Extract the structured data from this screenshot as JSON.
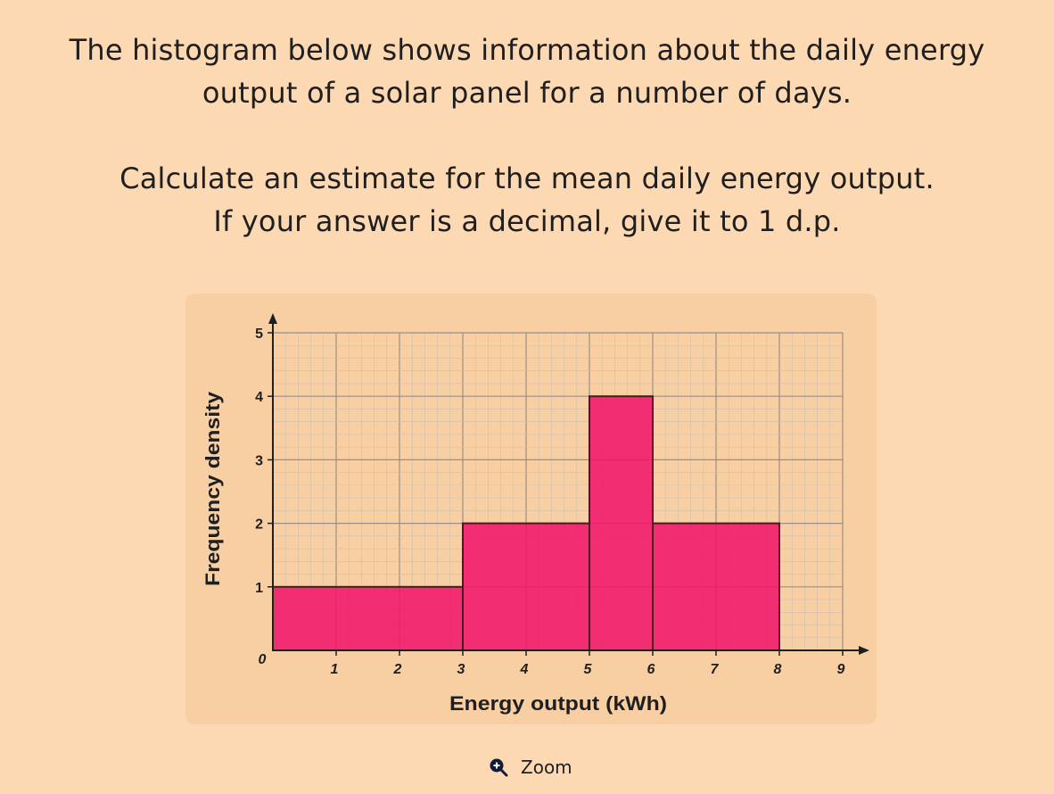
{
  "question": {
    "line1": "The histogram below shows information about the daily energy",
    "line2": "output of a solar panel for a number of days.",
    "line3": "Calculate an estimate for the mean daily energy output.",
    "line4": "If your answer is a decimal, give it to 1 d.p."
  },
  "zoom": {
    "label": "Zoom",
    "icon": "zoom-in-icon"
  },
  "chart_data": {
    "type": "bar",
    "subtype": "histogram",
    "bins": [
      {
        "from": 0,
        "to": 3,
        "value": 1
      },
      {
        "from": 3,
        "to": 5,
        "value": 2
      },
      {
        "from": 5,
        "to": 6,
        "value": 4
      },
      {
        "from": 6,
        "to": 8,
        "value": 2
      }
    ],
    "xlabel": "Energy output (kWh)",
    "ylabel": "Frequency density",
    "xlim": [
      0,
      9
    ],
    "ylim": [
      0,
      5
    ],
    "xticks": [
      "0",
      "1",
      "2",
      "3",
      "4",
      "5",
      "6",
      "7",
      "8",
      "9"
    ],
    "yticks": [
      "1",
      "2",
      "3",
      "4",
      "5"
    ],
    "grid": true,
    "colors": {
      "bar": "#f0176a",
      "bar_stroke": "#4a1a22",
      "grid_major": "#9a8f86",
      "grid_minor": "#ccbfb2",
      "axis": "#1f1f1f"
    }
  }
}
